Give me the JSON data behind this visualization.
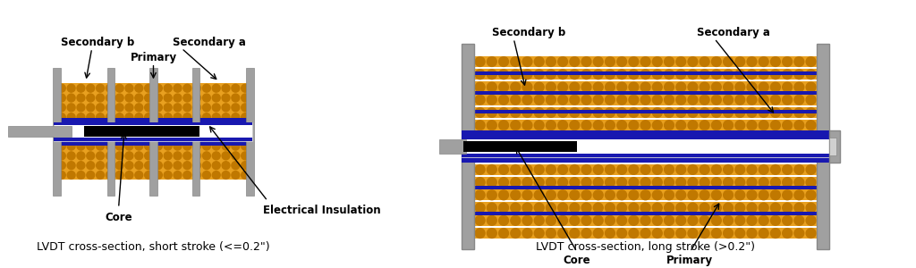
{
  "bg_color": "#ffffff",
  "orange_color": "#E8A020",
  "blue_color": "#1818B0",
  "gray_color": "#A0A0A0",
  "dark_gray": "#606060",
  "black_color": "#000000",
  "white_color": "#ffffff",
  "caption1": "LVDT cross-section, short stroke (<=0.2\")",
  "caption2": "LVDT cross-section, long stroke (>0.2\")",
  "label_primary_short": "Primary",
  "label_sec_b_short": "Secondary b",
  "label_sec_a_short": "Secondary a",
  "label_core_short": "Core",
  "label_insulation": "Electrical Insulation",
  "label_sec_b_long": "Secondary b",
  "label_sec_a_long": "Secondary a",
  "label_core_long": "Core",
  "label_primary_long": "Primary"
}
